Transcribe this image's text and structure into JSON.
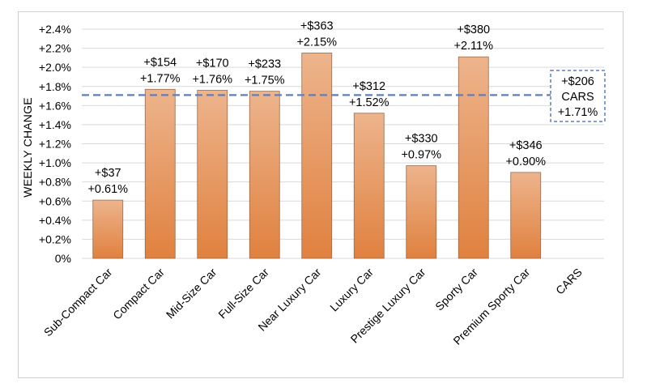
{
  "chart_data": {
    "type": "bar",
    "categories": [
      "Sub-Compact Car",
      "Compact Car",
      "Mid-Size Car",
      "Full-Size Car",
      "Near Luxury Car",
      "Luxury Car",
      "Prestige Luxury Car",
      "Sporty Car",
      "Premium Sporty Car",
      "CARS"
    ],
    "values": [
      0.61,
      1.77,
      1.76,
      1.75,
      2.15,
      1.52,
      0.97,
      2.11,
      0.9,
      null
    ],
    "dollar_labels": [
      "+$37",
      "+$154",
      "+$170",
      "+$233",
      "+$363",
      "+$312",
      "+$330",
      "+$380",
      "+$346",
      "+$206"
    ],
    "pct_labels": [
      "+0.61%",
      "+1.77%",
      "+1.76%",
      "+1.75%",
      "+2.15%",
      "+1.52%",
      "+0.97%",
      "+2.11%",
      "+0.90%",
      "+1.71%"
    ],
    "reference_line": {
      "value": 1.71,
      "name": "CARS"
    },
    "ylabel": "WEEKLY CHANGE",
    "xlabel": "",
    "title": "",
    "ylim": [
      0,
      2.4
    ],
    "ytick_step": 0.2,
    "yticks": [
      "0%",
      "+0.2%",
      "+0.4%",
      "+0.6%",
      "+0.8%",
      "+1.0%",
      "+1.2%",
      "+1.4%",
      "+1.6%",
      "+1.8%",
      "+2.0%",
      "+2.2%",
      "+2.4%"
    ],
    "grid": true,
    "legend": "none",
    "colors": {
      "bar_top": "#EDB48C",
      "bar_bottom": "#E0813F",
      "bar_edge": "#9A6A4A",
      "ref_line": "#5B7FC4",
      "grid": "#D9D9D9"
    }
  }
}
